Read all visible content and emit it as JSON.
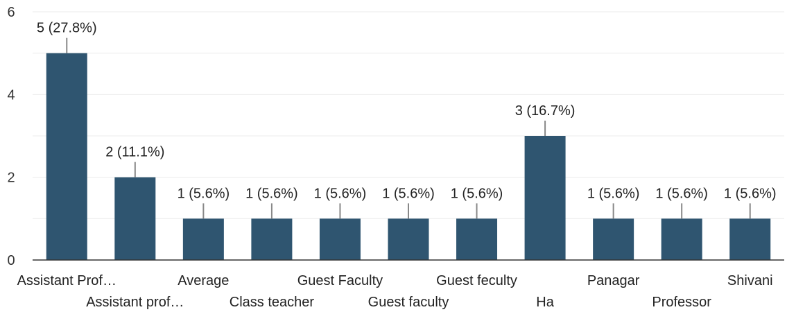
{
  "chart_data": {
    "type": "bar",
    "categories": [
      "Assistant Prof…",
      "Assistant prof…",
      "Average",
      "Class teacher",
      "Guest Faculty",
      "Guest faculty",
      "Guest feculty",
      "Ha",
      "Panagar",
      "Professor",
      "Shivani"
    ],
    "values": [
      5,
      2,
      1,
      1,
      1,
      1,
      1,
      3,
      1,
      1,
      1
    ],
    "data_labels": [
      "5 (27.8%)",
      "2 (11.1%)",
      "1 (5.6%)",
      "1 (5.6%)",
      "1 (5.6%)",
      "1 (5.6%)",
      "1 (5.6%)",
      "3 (16.7%)",
      "1 (5.6%)",
      "1 (5.6%)",
      "1 (5.6%)"
    ],
    "yticks": [
      "0",
      "2",
      "4",
      "6"
    ],
    "ylim": [
      0,
      6
    ],
    "grid": true,
    "bar_color": "#2f5570",
    "title": "",
    "xlabel": "",
    "ylabel": ""
  }
}
